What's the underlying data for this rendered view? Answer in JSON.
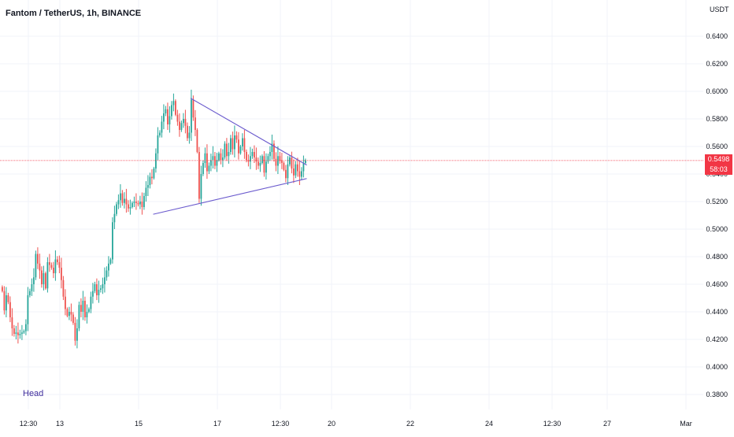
{
  "header": {
    "symbol_title": "Fantom / TetherUS, 1h, BINANCE",
    "currency": "USDT"
  },
  "annotations": {
    "head_label": "Head"
  },
  "price_scale": {
    "last_price": "0.5498",
    "countdown": "58:03",
    "last_price_color": "#f23645"
  },
  "colors": {
    "up": "#26a69a",
    "down": "#ef5350",
    "trendline": "#6a5acd",
    "grid": "#f0f3fa",
    "last_price_line": "#f23645"
  },
  "chart_data": {
    "type": "candlestick",
    "symbol": "Fantom / TetherUS",
    "interval": "1h",
    "exchange": "BINANCE",
    "y_axis": {
      "labels": [
        "0.6400",
        "0.6200",
        "0.6000",
        "0.5800",
        "0.5600",
        "0.5400",
        "0.5200",
        "0.5000",
        "0.4800",
        "0.4600",
        "0.4400",
        "0.4200",
        "0.4000",
        "0.3800"
      ],
      "range": [
        0.375,
        0.645
      ]
    },
    "x_axis": {
      "labels": [
        {
          "label": "12:30",
          "idx": 0
        },
        {
          "label": "13",
          "idx": 16
        },
        {
          "label": "15",
          "idx": 56
        },
        {
          "label": "17",
          "idx": 96
        },
        {
          "label": "12:30",
          "idx": 128
        },
        {
          "label": "20",
          "idx": 154
        },
        {
          "label": "22",
          "idx": 194
        },
        {
          "label": "24",
          "idx": 234
        },
        {
          "label": "12:30",
          "idx": 266
        },
        {
          "label": "27",
          "idx": 294
        },
        {
          "label": "Mar",
          "idx": 334
        }
      ],
      "total_slots": 345
    },
    "close_series": [
      0.455,
      0.441,
      0.452,
      0.447,
      0.436,
      0.428,
      0.424,
      0.425,
      0.423,
      0.424,
      0.425,
      0.426,
      0.431,
      0.452,
      0.455,
      0.46,
      0.465,
      0.482,
      0.475,
      0.47,
      0.46,
      0.468,
      0.457,
      0.476,
      0.474,
      0.472,
      0.468,
      0.478,
      0.476,
      0.472,
      0.463,
      0.451,
      0.442,
      0.437,
      0.44,
      0.438,
      0.432,
      0.419,
      0.428,
      0.445,
      0.44,
      0.448,
      0.436,
      0.44,
      0.442,
      0.451,
      0.455,
      0.46,
      0.452,
      0.456,
      0.457,
      0.46,
      0.465,
      0.47,
      0.475,
      0.478,
      0.505,
      0.511,
      0.518,
      0.521,
      0.526,
      0.519,
      0.522,
      0.518,
      0.515,
      0.516,
      0.519,
      0.52,
      0.519,
      0.518,
      0.52,
      0.516,
      0.524,
      0.53,
      0.532,
      0.538,
      0.537,
      0.544,
      0.555,
      0.568,
      0.57,
      0.578,
      0.584,
      0.587,
      0.576,
      0.582,
      0.59,
      0.593,
      0.583,
      0.578,
      0.572,
      0.577,
      0.58,
      0.575,
      0.566,
      0.57,
      0.594,
      0.581,
      0.572,
      0.556,
      0.522,
      0.54,
      0.548,
      0.555,
      0.542,
      0.546,
      0.55,
      0.553,
      0.546,
      0.55,
      0.555,
      0.55,
      0.552,
      0.562,
      0.553,
      0.556,
      0.566,
      0.558,
      0.568,
      0.565,
      0.555,
      0.56,
      0.566,
      0.556,
      0.55,
      0.549,
      0.553,
      0.556,
      0.552,
      0.549,
      0.546,
      0.548,
      0.553,
      0.541,
      0.549,
      0.553,
      0.556,
      0.562,
      0.551,
      0.546,
      0.553,
      0.55,
      0.548,
      0.543,
      0.537,
      0.547,
      0.552,
      0.544,
      0.539,
      0.547,
      0.542,
      0.538,
      0.542,
      0.548,
      0.55
    ],
    "trendlines": [
      {
        "name": "upper-trendline",
        "from": {
          "idx": 96,
          "price": 0.595
        },
        "to": {
          "idx": 155,
          "price": 0.5465
        }
      },
      {
        "name": "lower-trendline",
        "from": {
          "idx": 77,
          "price": 0.5108
        },
        "to": {
          "idx": 155,
          "price": 0.5367
        }
      }
    ],
    "last_price": 0.5498
  }
}
